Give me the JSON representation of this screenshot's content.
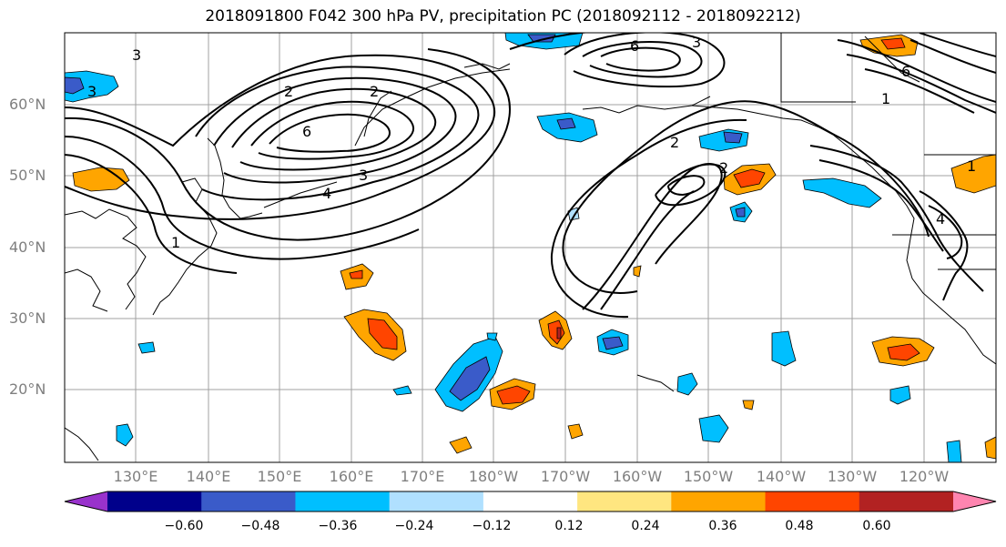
{
  "title": "2018091800 F042 300 hPa PV, precipitation PC (2018092112 - 2018092212)",
  "lat_labels": [
    "60°N",
    "50°N",
    "40°N",
    "30°N",
    "20°N"
  ],
  "lon_labels": [
    "130°E",
    "140°E",
    "150°E",
    "160°E",
    "170°E",
    "180°W",
    "170°W",
    "160°W",
    "150°W",
    "140°W",
    "130°W",
    "120°W"
  ],
  "pv_contour_labels": [
    "1",
    "2",
    "3",
    "4",
    "6"
  ],
  "colorbar": {
    "ticks": [
      "−0.60",
      "−0.48",
      "−0.36",
      "−0.24",
      "−0.12",
      "0.12",
      "0.24",
      "0.36",
      "0.48",
      "0.60"
    ],
    "colors": [
      "#9932cc",
      "#00008b",
      "#3a5bc9",
      "#00bfff",
      "#b0e0ff",
      "#ffffff",
      "#ffe680",
      "#ffa500",
      "#ff4500",
      "#b22222",
      "#ff85b0"
    ]
  }
}
